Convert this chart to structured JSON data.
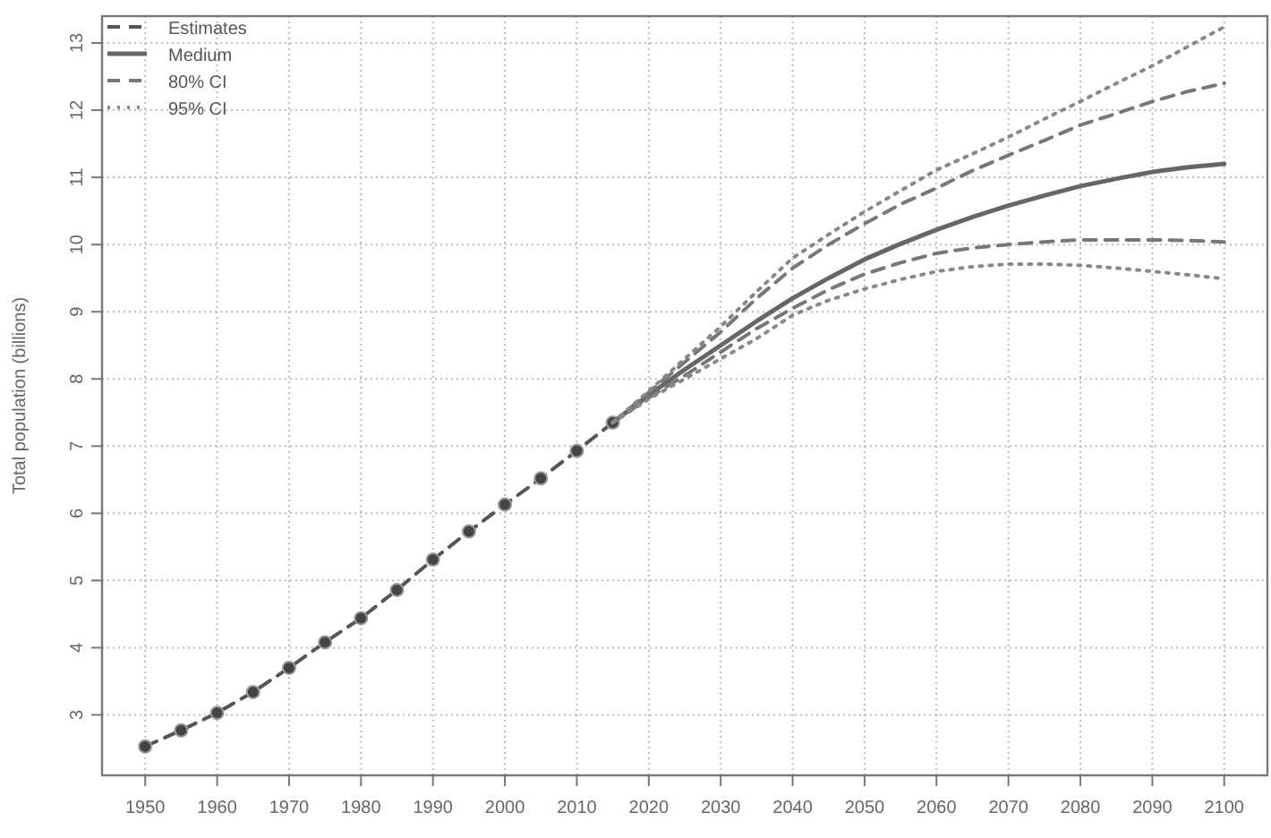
{
  "chart_data": {
    "type": "line",
    "ylabel": "Total population (billions)",
    "xlim": [
      1944,
      2106
    ],
    "xticks": [
      1950,
      1960,
      1970,
      1980,
      1990,
      2000,
      2010,
      2020,
      2030,
      2040,
      2050,
      2060,
      2070,
      2080,
      2090,
      2100
    ],
    "ylim": [
      2.1,
      13.4
    ],
    "yticks": [
      3,
      4,
      5,
      6,
      7,
      8,
      9,
      10,
      11,
      12,
      13
    ],
    "grid": true,
    "legend": "top left",
    "series": [
      {
        "name": "Estimates",
        "color": "#555555",
        "marker": "circle",
        "line_style": "dashed",
        "x": [
          1950,
          1955,
          1960,
          1965,
          1970,
          1975,
          1980,
          1985,
          1990,
          1995,
          2000,
          2005,
          2010,
          2015
        ],
        "values": [
          2.53,
          2.77,
          3.03,
          3.34,
          3.7,
          4.08,
          4.44,
          4.86,
          5.31,
          5.73,
          6.13,
          6.52,
          6.93,
          7.35
        ]
      },
      {
        "name": "Medium",
        "color": "#666666",
        "line_style": "solid",
        "x": [
          2015,
          2020,
          2025,
          2030,
          2035,
          2040,
          2045,
          2050,
          2055,
          2060,
          2065,
          2070,
          2075,
          2080,
          2085,
          2090,
          2095,
          2100
        ],
        "values": [
          7.35,
          7.76,
          8.14,
          8.5,
          8.86,
          9.2,
          9.5,
          9.78,
          10.01,
          10.22,
          10.41,
          10.58,
          10.73,
          10.87,
          10.98,
          11.08,
          11.15,
          11.2
        ]
      },
      {
        "name": "80% CI",
        "color": "#777777",
        "line_style": "dashed",
        "x": [
          2015,
          2020,
          2025,
          2030,
          2035,
          2040,
          2045,
          2050,
          2055,
          2060,
          2065,
          2070,
          2075,
          2080,
          2085,
          2090,
          2095,
          2100
        ],
        "values": [
          7.35,
          7.8,
          8.25,
          8.7,
          9.2,
          9.65,
          10.0,
          10.31,
          10.6,
          10.84,
          11.1,
          11.33,
          11.55,
          11.78,
          11.95,
          12.13,
          12.28,
          12.4
        ]
      },
      {
        "color": "#777777",
        "line_style": "dashed",
        "x": [
          2015,
          2020,
          2025,
          2030,
          2035,
          2040,
          2045,
          2050,
          2055,
          2060,
          2065,
          2070,
          2075,
          2080,
          2085,
          2090,
          2095,
          2100
        ],
        "values": [
          7.35,
          7.72,
          8.05,
          8.4,
          8.75,
          9.05,
          9.33,
          9.56,
          9.73,
          9.87,
          9.95,
          10.0,
          10.04,
          10.07,
          10.07,
          10.07,
          10.06,
          10.04
        ]
      },
      {
        "name": "95% CI",
        "color": "#888888",
        "line_style": "dotted",
        "x": [
          2015,
          2020,
          2025,
          2030,
          2035,
          2040,
          2045,
          2050,
          2055,
          2060,
          2065,
          2070,
          2075,
          2080,
          2085,
          2090,
          2095,
          2100
        ],
        "values": [
          7.35,
          7.82,
          8.3,
          8.78,
          9.3,
          9.8,
          10.15,
          10.49,
          10.8,
          11.11,
          11.35,
          11.6,
          11.87,
          12.13,
          12.4,
          12.66,
          12.95,
          13.24
        ]
      },
      {
        "color": "#888888",
        "line_style": "dotted",
        "x": [
          2015,
          2020,
          2025,
          2030,
          2035,
          2040,
          2045,
          2050,
          2055,
          2060,
          2065,
          2070,
          2075,
          2080,
          2085,
          2090,
          2095,
          2100
        ],
        "values": [
          7.35,
          7.7,
          8.0,
          8.3,
          8.6,
          8.95,
          9.17,
          9.34,
          9.48,
          9.6,
          9.67,
          9.71,
          9.71,
          9.69,
          9.65,
          9.6,
          9.55,
          9.49
        ]
      }
    ]
  }
}
